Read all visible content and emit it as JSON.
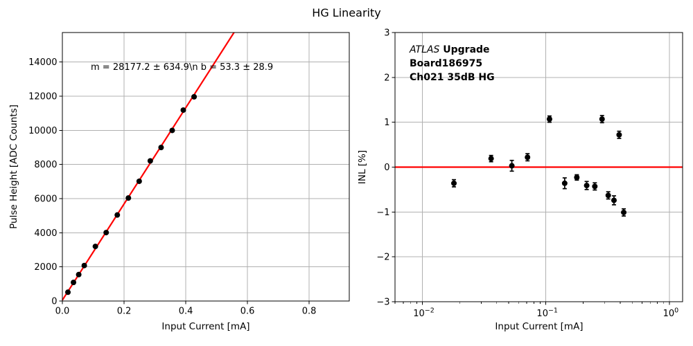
{
  "figure": {
    "title": "HG Linearity"
  },
  "colors": {
    "background": "#ffffff",
    "fit_line": "#ff0000",
    "zero_line": "#ff0000",
    "marker": "#000000",
    "grid": "#b0b0b0",
    "axis": "#000000"
  },
  "chart_data": [
    {
      "type": "scatter",
      "name": "pulse-height-linearity",
      "xlabel": "Input Current [mA]",
      "ylabel": "Pulse Height [ADC Counts]",
      "xscale": "linear",
      "xlim": [
        0,
        0.93
      ],
      "ylim": [
        0,
        15730
      ],
      "xticks": [
        0.0,
        0.2,
        0.4,
        0.6,
        0.8
      ],
      "xtick_labels": [
        "0.0",
        "0.2",
        "0.4",
        "0.6",
        "0.8"
      ],
      "yticks": [
        0,
        2000,
        4000,
        6000,
        8000,
        10000,
        12000,
        14000
      ],
      "ytick_labels": [
        "0",
        "2000",
        "4000",
        "6000",
        "8000",
        "10000",
        "12000",
        "14000"
      ],
      "grid": true,
      "x": [
        0.018,
        0.036,
        0.053,
        0.071,
        0.107,
        0.142,
        0.178,
        0.214,
        0.249,
        0.285,
        0.32,
        0.356,
        0.392,
        0.427
      ],
      "y": [
        515,
        1090,
        1550,
        2080,
        3200,
        4010,
        5040,
        6035,
        7015,
        8210,
        8995,
        9995,
        11185,
        11965
      ],
      "fit": {
        "slope": 28177.2,
        "slope_err": 634.9,
        "intercept": 53.3,
        "intercept_err": 28.9
      },
      "annotation": "m = 28177.2 ± 634.9\\n b = 53.3 ± 28.9"
    },
    {
      "type": "scatter",
      "name": "inl",
      "xlabel": "Input Current [mA]",
      "ylabel": "INL [%]",
      "xscale": "log",
      "xlim": [
        0.006,
        1.28
      ],
      "ylim": [
        -3,
        3
      ],
      "xticks": [
        0.01,
        0.1,
        1
      ],
      "xtick_exponents": [
        {
          "base": "10",
          "exp": "−2"
        },
        {
          "base": "10",
          "exp": "−1"
        },
        {
          "base": "10",
          "exp": "0"
        }
      ],
      "yticks": [
        -3,
        -2,
        -1,
        0,
        1,
        2,
        3
      ],
      "ytick_labels": [
        "−3",
        "−2",
        "−1",
        "0",
        "1",
        "2",
        "3"
      ],
      "grid": true,
      "x": [
        0.018,
        0.036,
        0.053,
        0.071,
        0.107,
        0.142,
        0.178,
        0.214,
        0.249,
        0.285,
        0.32,
        0.356,
        0.392,
        0.427
      ],
      "y": [
        -0.36,
        0.19,
        0.03,
        0.22,
        1.07,
        -0.36,
        -0.23,
        -0.41,
        -0.43,
        1.07,
        -0.63,
        -0.74,
        0.72,
        -1.01
      ],
      "yerr": [
        0.08,
        0.07,
        0.12,
        0.08,
        0.07,
        0.12,
        0.06,
        0.09,
        0.08,
        0.08,
        0.08,
        0.1,
        0.08,
        0.08
      ],
      "zero_line": 0,
      "annotation_lines": [
        {
          "italic": "ATLAS",
          "bold": " Upgrade"
        },
        {
          "bold": " Board186975"
        },
        {
          "bold": " Ch021 35dB HG"
        }
      ]
    }
  ]
}
